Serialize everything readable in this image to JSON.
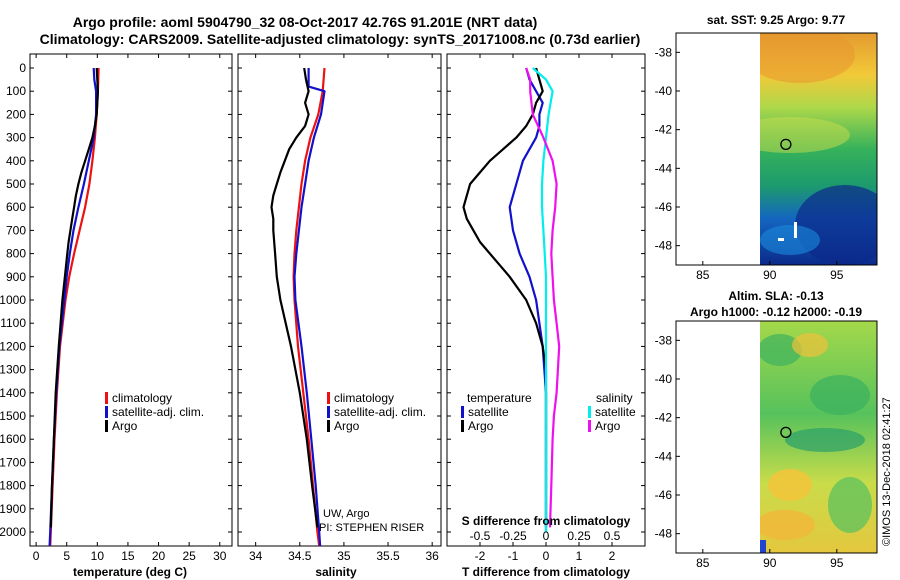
{
  "header": {
    "line1": "Argo profile: aoml 5904790_32 08-Oct-2017 42.76S 91.201E (NRT data)",
    "line2": "Climatology: CARS2009. Satellite-adjusted climatology: synTS_20171008.nc (0.73d earlier)"
  },
  "credits": {
    "uw": "UW, Argo",
    "pi": "PI: STEPHEN RISER",
    "imos": "©IMOS 13-Dec-2018 02:41:27"
  },
  "colors": {
    "climatology": "#ee1111",
    "satellite": "#1111cc",
    "argo": "#000000",
    "sal_sat": "#00eeee",
    "sal_argo": "#ee11ee"
  },
  "chart_data": [
    {
      "type": "line",
      "name": "temperature",
      "xlabel": "temperature (deg C)",
      "xlim": [
        -1,
        32
      ],
      "ylim": [
        2070,
        0
      ],
      "x_ticks": [
        0,
        5,
        10,
        15,
        20,
        25,
        30
      ],
      "y_ticks": [
        0,
        100,
        200,
        300,
        400,
        500,
        600,
        700,
        800,
        900,
        1000,
        1100,
        1200,
        1300,
        1400,
        1500,
        1600,
        1700,
        1800,
        1900,
        2000
      ],
      "legend": [
        "climatology",
        "satellite-adj. clim.",
        "Argo"
      ],
      "series": [
        {
          "name": "climatology",
          "depth": [
            0,
            100,
            200,
            300,
            400,
            500,
            600,
            700,
            800,
            900,
            1000,
            1200,
            1400,
            1600,
            1800,
            2000,
            2060
          ],
          "values": [
            10.2,
            10.1,
            9.9,
            9.6,
            9.2,
            8.7,
            8.0,
            7.1,
            6.2,
            5.4,
            4.8,
            3.9,
            3.4,
            3.0,
            2.7,
            2.4,
            2.3
          ]
        },
        {
          "name": "satellite-adj. clim.",
          "depth": [
            0,
            50,
            100,
            200,
            300,
            400,
            500,
            600,
            700,
            800,
            900,
            1000,
            1200,
            1400,
            1600,
            1800,
            2000,
            2060
          ],
          "values": [
            9.4,
            9.5,
            9.8,
            9.8,
            9.4,
            8.6,
            7.8,
            6.9,
            6.1,
            5.5,
            5.0,
            4.6,
            3.8,
            3.3,
            2.9,
            2.6,
            2.3,
            2.2
          ]
        },
        {
          "name": "Argo",
          "depth": [
            0,
            50,
            100,
            200,
            250,
            300,
            350,
            400,
            450,
            500,
            550,
            600,
            650,
            700,
            750,
            800,
            900,
            1000,
            1100,
            1200,
            1400,
            1600,
            1800,
            1980
          ],
          "values": [
            9.9,
            10.0,
            10.1,
            9.9,
            9.6,
            9.2,
            8.6,
            8.0,
            7.4,
            6.9,
            6.5,
            6.2,
            5.9,
            5.6,
            5.3,
            5.1,
            4.7,
            4.3,
            4.0,
            3.7,
            3.2,
            2.9,
            2.6,
            2.4
          ]
        }
      ]
    },
    {
      "type": "line",
      "name": "salinity",
      "xlabel": "salinity",
      "xlim": [
        33.8,
        36.1
      ],
      "ylim": [
        2070,
        0
      ],
      "x_ticks": [
        34,
        34.5,
        35,
        35.5,
        36
      ],
      "legend": [
        "climatology",
        "satellite-adj. clim.",
        "Argo"
      ],
      "series": [
        {
          "name": "climatology",
          "depth": [
            0,
            100,
            200,
            300,
            400,
            500,
            600,
            700,
            800,
            900,
            1000,
            1200,
            1400,
            1600,
            1800,
            2000,
            2060
          ],
          "values": [
            34.78,
            34.76,
            34.71,
            34.62,
            34.56,
            34.52,
            34.49,
            34.46,
            34.44,
            34.43,
            34.44,
            34.48,
            34.54,
            34.6,
            34.65,
            34.7,
            34.72
          ]
        },
        {
          "name": "satellite-adj. clim.",
          "depth": [
            0,
            80,
            100,
            200,
            300,
            400,
            500,
            600,
            700,
            800,
            900,
            1000,
            1200,
            1400,
            1600,
            1800,
            2000,
            2060
          ],
          "values": [
            34.6,
            34.6,
            34.78,
            34.74,
            34.66,
            34.6,
            34.56,
            34.52,
            34.49,
            34.46,
            34.44,
            34.45,
            34.52,
            34.58,
            34.63,
            34.68,
            34.72,
            34.73
          ]
        },
        {
          "name": "Argo",
          "depth": [
            0,
            50,
            100,
            150,
            200,
            250,
            300,
            350,
            400,
            450,
            500,
            550,
            600,
            650,
            700,
            800,
            900,
            1000,
            1200,
            1400,
            1600,
            1800,
            1980
          ],
          "values": [
            34.55,
            34.57,
            34.6,
            34.56,
            34.6,
            34.56,
            34.46,
            34.38,
            34.33,
            34.28,
            34.24,
            34.2,
            34.18,
            34.2,
            34.2,
            34.22,
            34.24,
            34.28,
            34.4,
            34.5,
            34.58,
            34.64,
            34.7
          ]
        }
      ]
    },
    {
      "type": "line",
      "name": "difference from climatology",
      "xlabel": "T difference from climatology",
      "xlabel_top": "S difference from climatology",
      "xlim": [
        -3.0,
        3.0
      ],
      "ylim": [
        2070,
        0
      ],
      "x_ticks": [
        -2,
        -1,
        0,
        1,
        2
      ],
      "x_ticks_s": [
        -0.5,
        -0.25,
        0,
        0.25,
        0.5
      ],
      "x_ticks_s_labels": [
        "-0.5",
        "-0.25",
        "0",
        "0.25",
        "0.5"
      ],
      "legend_temperature_title": "temperature",
      "legend_salinity_title": "salinity",
      "legend": [
        "satellite",
        "Argo"
      ],
      "series": [
        {
          "name": "temperature satellite",
          "depth": [
            0,
            50,
            100,
            150,
            200,
            250,
            300,
            400,
            500,
            600,
            700,
            800,
            900,
            1000,
            1200,
            1400,
            1600,
            1800,
            2000
          ],
          "values": [
            -0.6,
            -0.5,
            -0.3,
            -0.1,
            -0.2,
            -0.2,
            -0.3,
            -0.7,
            -0.9,
            -1.1,
            -1.0,
            -0.8,
            -0.5,
            -0.3,
            -0.1,
            0.0,
            0.0,
            0.0,
            0.0
          ]
        },
        {
          "name": "temperature Argo",
          "depth": [
            0,
            50,
            100,
            150,
            200,
            250,
            300,
            350,
            400,
            450,
            500,
            550,
            600,
            650,
            700,
            750,
            800,
            850,
            900,
            1000,
            1100,
            1200,
            1300,
            1400,
            1500,
            1600,
            1800,
            1980
          ],
          "values": [
            -0.3,
            -0.2,
            -0.1,
            -0.3,
            -0.4,
            -0.6,
            -0.9,
            -1.3,
            -1.7,
            -2.0,
            -2.3,
            -2.4,
            -2.5,
            -2.4,
            -2.2,
            -2.0,
            -1.7,
            -1.4,
            -1.1,
            -0.6,
            -0.3,
            -0.1,
            0.0,
            0.0,
            0.0,
            0.0,
            0.0,
            0.0
          ]
        },
        {
          "name": "salinity satellite",
          "depth": [
            0,
            50,
            100,
            200,
            300,
            400,
            500,
            600,
            700,
            800,
            900,
            1000,
            1200,
            1400,
            1600,
            1800,
            2000
          ],
          "values": [
            -0.1,
            0.0,
            0.05,
            0.02,
            0.0,
            -0.02,
            -0.03,
            -0.03,
            -0.02,
            -0.01,
            0.0,
            0.0,
            0.0,
            0.0,
            0.0,
            0.0,
            0.0
          ]
        },
        {
          "name": "salinity Argo",
          "depth": [
            0,
            50,
            100,
            200,
            300,
            400,
            500,
            600,
            700,
            800,
            900,
            1000,
            1100,
            1200,
            1300,
            1400,
            1500,
            1600,
            1800,
            1980
          ],
          "values": [
            -0.15,
            -0.12,
            -0.12,
            -0.1,
            -0.02,
            0.05,
            0.08,
            0.07,
            0.05,
            0.04,
            0.05,
            0.06,
            0.08,
            0.1,
            0.09,
            0.08,
            0.06,
            0.05,
            0.04,
            0.03
          ]
        }
      ]
    },
    {
      "type": "heatmap",
      "name": "sat SST map",
      "title": "sat. SST: 9.25 Argo: 9.77",
      "xlim": [
        83,
        98
      ],
      "ylim": [
        -49,
        -37
      ],
      "x_ticks": [
        85,
        90,
        95
      ],
      "y_ticks": [
        -38,
        -40,
        -42,
        -44,
        -46,
        -48
      ],
      "profile_position": [
        91.2,
        -42.76
      ]
    },
    {
      "type": "heatmap",
      "name": "altimetry SLA map",
      "title": "Altim. SLA: -0.13",
      "subtitle": "Argo h1000: -0.12 h2000: -0.19",
      "xlim": [
        83,
        98
      ],
      "ylim": [
        -49,
        -37
      ],
      "x_ticks": [
        85,
        90,
        95
      ],
      "y_ticks": [
        -38,
        -40,
        -42,
        -44,
        -46,
        -48
      ],
      "profile_position": [
        91.2,
        -42.76
      ]
    }
  ]
}
